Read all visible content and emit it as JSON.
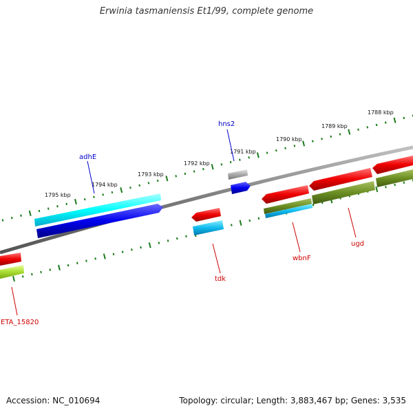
{
  "title": "Erwinia tasmaniensis Et1/99, complete genome",
  "footer": {
    "accession": "Accession: NC_010694",
    "summary": "Topology: circular; Length: 3,883,467 bp; Genes: 3,535"
  },
  "ticks": [
    {
      "label": "1795 kbp"
    },
    {
      "label": "1794 kbp"
    },
    {
      "label": "1793 kbp"
    },
    {
      "label": "1792 kbp"
    },
    {
      "label": "1791 kbp"
    },
    {
      "label": "1790 kbp"
    },
    {
      "label": "1789 kbp"
    },
    {
      "label": "1788 kbp"
    }
  ],
  "genes": {
    "adhE": {
      "label": "adhE",
      "color": "#0000cc"
    },
    "hns2": {
      "label": "hns2",
      "color": "#0000cc"
    },
    "tdk": {
      "label": "tdk",
      "color": "#cc0000"
    },
    "wbnF": {
      "label": "wbnF",
      "color": "#cc0000"
    },
    "ugd": {
      "label": "ugd",
      "color": "#cc0000"
    },
    "eta": {
      "label": "ETA_15820",
      "color": "#cc0000"
    }
  },
  "colors": {
    "forward_cds": "#0000ee",
    "forward_feature": "#22ccdd",
    "reverse_cds": "#ee0000",
    "reverse_feature": "#6b8e23",
    "light_feature": "#aadd33",
    "small_feature": "#aaaaaa",
    "backbone": "#808080",
    "tick": "#1a7a1a"
  }
}
